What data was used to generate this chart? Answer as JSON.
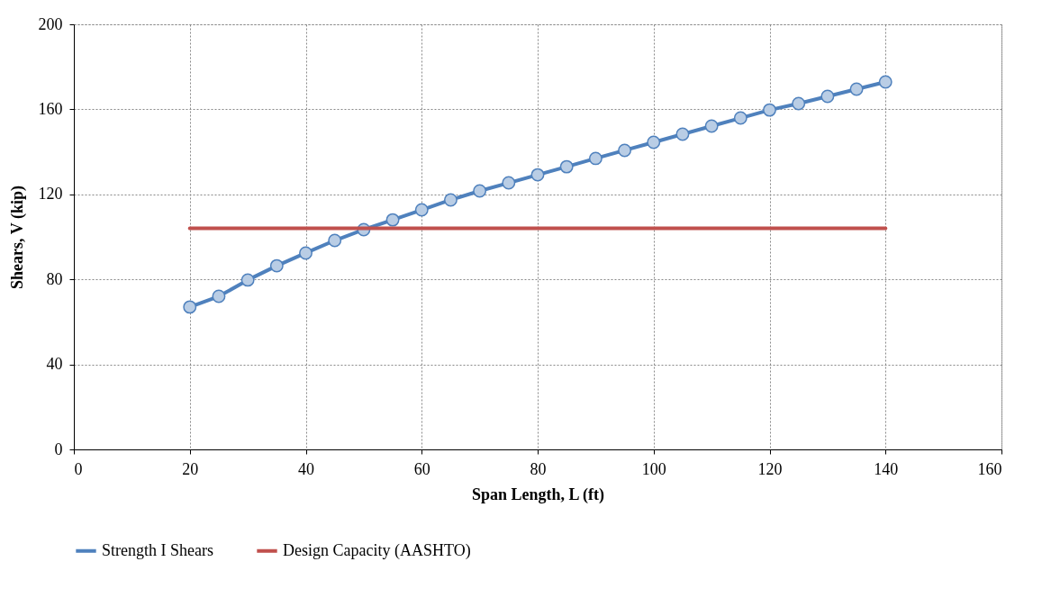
{
  "chart_data": {
    "type": "line",
    "xlabel": "Span Length, L (ft)",
    "ylabel": "Shears, V (kip)",
    "xlim": [
      0,
      160
    ],
    "xticks": [
      0,
      20,
      40,
      60,
      80,
      100,
      120,
      140,
      160
    ],
    "ylim": [
      0,
      200
    ],
    "yticks": [
      0,
      40,
      80,
      120,
      160,
      200
    ],
    "grid": true,
    "legend": "bottom",
    "series": [
      {
        "name": "Strength I Shears",
        "color": "#4f81bd",
        "marker": "circle",
        "x": [
          20,
          25,
          30,
          35,
          40,
          45,
          50,
          55,
          60,
          65,
          70,
          75,
          80,
          85,
          90,
          95,
          100,
          105,
          110,
          115,
          120,
          125,
          130,
          135,
          140
        ],
        "values": [
          67,
          72,
          79.7,
          86.4,
          92.4,
          98.3,
          103.4,
          108,
          112.7,
          117.4,
          121.6,
          125.4,
          129.2,
          133,
          136.9,
          140.7,
          144.5,
          148.3,
          152.1,
          155.9,
          159.7,
          162.7,
          166.1,
          169.5,
          172.9
        ]
      },
      {
        "name": "Design Capacity (AASHTO)",
        "color": "#c0504d",
        "marker": "none",
        "x": [
          20,
          140
        ],
        "values": [
          104,
          104
        ]
      }
    ]
  }
}
